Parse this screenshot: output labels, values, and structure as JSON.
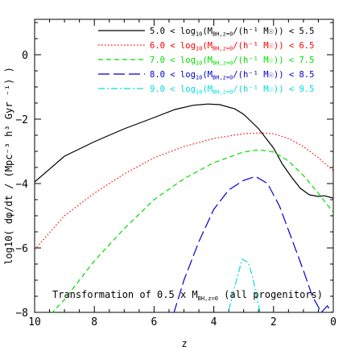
{
  "chart_data": {
    "type": "line",
    "xlabel": "z",
    "ylabel": "log10( dφ/dt / (Mpc⁻³ h³ Gyr ⁻¹) )",
    "xlim": [
      10,
      0
    ],
    "ylim": [
      -8,
      1.1
    ],
    "x_ticks": [
      "10",
      "8",
      "6",
      "4",
      "2",
      "0"
    ],
    "y_ticks": [
      "0",
      "−2",
      "−4",
      "−6",
      "−8"
    ],
    "legend_position": "top-right",
    "annotation": {
      "pre": "Transformation of 0.5 x M",
      "sub": "BH,z=0",
      "post": " (all progenitors)"
    },
    "series": [
      {
        "legend": {
          "pre": "5.0 < log",
          "sub1": "10",
          "mid": "(M",
          "sub2": "BH,z=0",
          "post": "/(h⁻¹ M☉)) < 5.5"
        },
        "color": "#000000",
        "dash": "",
        "points": [
          [
            10,
            -3.95
          ],
          [
            9,
            -3.15
          ],
          [
            8,
            -2.7
          ],
          [
            7,
            -2.3
          ],
          [
            6,
            -1.95
          ],
          [
            5.3,
            -1.7
          ],
          [
            4.7,
            -1.57
          ],
          [
            4.2,
            -1.53
          ],
          [
            3.8,
            -1.55
          ],
          [
            3.3,
            -1.68
          ],
          [
            3,
            -1.85
          ],
          [
            2.5,
            -2.3
          ],
          [
            2,
            -2.9
          ],
          [
            1.7,
            -3.4
          ],
          [
            1.4,
            -3.8
          ],
          [
            1.1,
            -4.15
          ],
          [
            0.8,
            -4.35
          ],
          [
            0.5,
            -4.4
          ],
          [
            0.3,
            -4.38
          ],
          [
            0,
            -4.45
          ]
        ]
      },
      {
        "legend": {
          "pre": "6.0 < log",
          "sub1": "10",
          "mid": "(M",
          "sub2": "BH,z=0",
          "post": "/(h⁻¹ M☉)) < 6.5"
        },
        "color": "#ff0000",
        "dash": "1.5,2.5",
        "points": [
          [
            10,
            -6.05
          ],
          [
            9,
            -5.0
          ],
          [
            8,
            -4.3
          ],
          [
            7,
            -3.7
          ],
          [
            6,
            -3.2
          ],
          [
            5,
            -2.85
          ],
          [
            4,
            -2.6
          ],
          [
            3,
            -2.45
          ],
          [
            2.5,
            -2.43
          ],
          [
            2,
            -2.45
          ],
          [
            1.5,
            -2.6
          ],
          [
            1,
            -2.85
          ],
          [
            0.5,
            -3.2
          ],
          [
            0,
            -3.6
          ]
        ]
      },
      {
        "legend": {
          "pre": "7.0 < log",
          "sub1": "10",
          "mid": "(M",
          "sub2": "BH,z=0",
          "post": "/(h⁻¹ M☉)) < 7.5"
        },
        "color": "#00dd00",
        "dash": "6,4",
        "points": [
          [
            10,
            -8.6
          ],
          [
            9,
            -7.6
          ],
          [
            8,
            -6.4
          ],
          [
            7,
            -5.4
          ],
          [
            6,
            -4.5
          ],
          [
            5,
            -3.85
          ],
          [
            4,
            -3.35
          ],
          [
            3,
            -3.02
          ],
          [
            2.5,
            -2.95
          ],
          [
            2,
            -3.02
          ],
          [
            1.5,
            -3.3
          ],
          [
            1,
            -3.75
          ],
          [
            0.5,
            -4.3
          ],
          [
            0,
            -4.9
          ]
        ]
      },
      {
        "legend": {
          "pre": "8.0 < log",
          "sub1": "10",
          "mid": "(M",
          "sub2": "BH,z=0",
          "post": "/(h⁻¹ M☉)) < 8.5"
        },
        "color": "#0000cc",
        "dash": "14,5",
        "points": [
          [
            5.5,
            -8.5
          ],
          [
            5,
            -7.0
          ],
          [
            4.5,
            -5.8
          ],
          [
            4,
            -4.8
          ],
          [
            3.5,
            -4.2
          ],
          [
            3,
            -3.9
          ],
          [
            2.6,
            -3.78
          ],
          [
            2.2,
            -4.0
          ],
          [
            1.8,
            -4.7
          ],
          [
            1.4,
            -5.7
          ],
          [
            1,
            -6.7
          ],
          [
            0.7,
            -7.5
          ],
          [
            0.4,
            -8.0
          ],
          [
            0.2,
            -7.8
          ],
          [
            0.05,
            -8.0
          ]
        ]
      },
      {
        "legend": {
          "pre": "9.0 < log",
          "sub1": "10",
          "mid": "(M",
          "sub2": "BH,z=0",
          "post": "/(h⁻¹ M☉)) < 9.5"
        },
        "color": "#00dddd",
        "dash": "8,3,2,3",
        "points": [
          [
            3.6,
            -8.3
          ],
          [
            3.3,
            -7.2
          ],
          [
            3.05,
            -6.35
          ],
          [
            2.85,
            -6.45
          ],
          [
            2.7,
            -6.9
          ],
          [
            2.55,
            -7.6
          ],
          [
            2.4,
            -8.2
          ]
        ]
      }
    ]
  }
}
